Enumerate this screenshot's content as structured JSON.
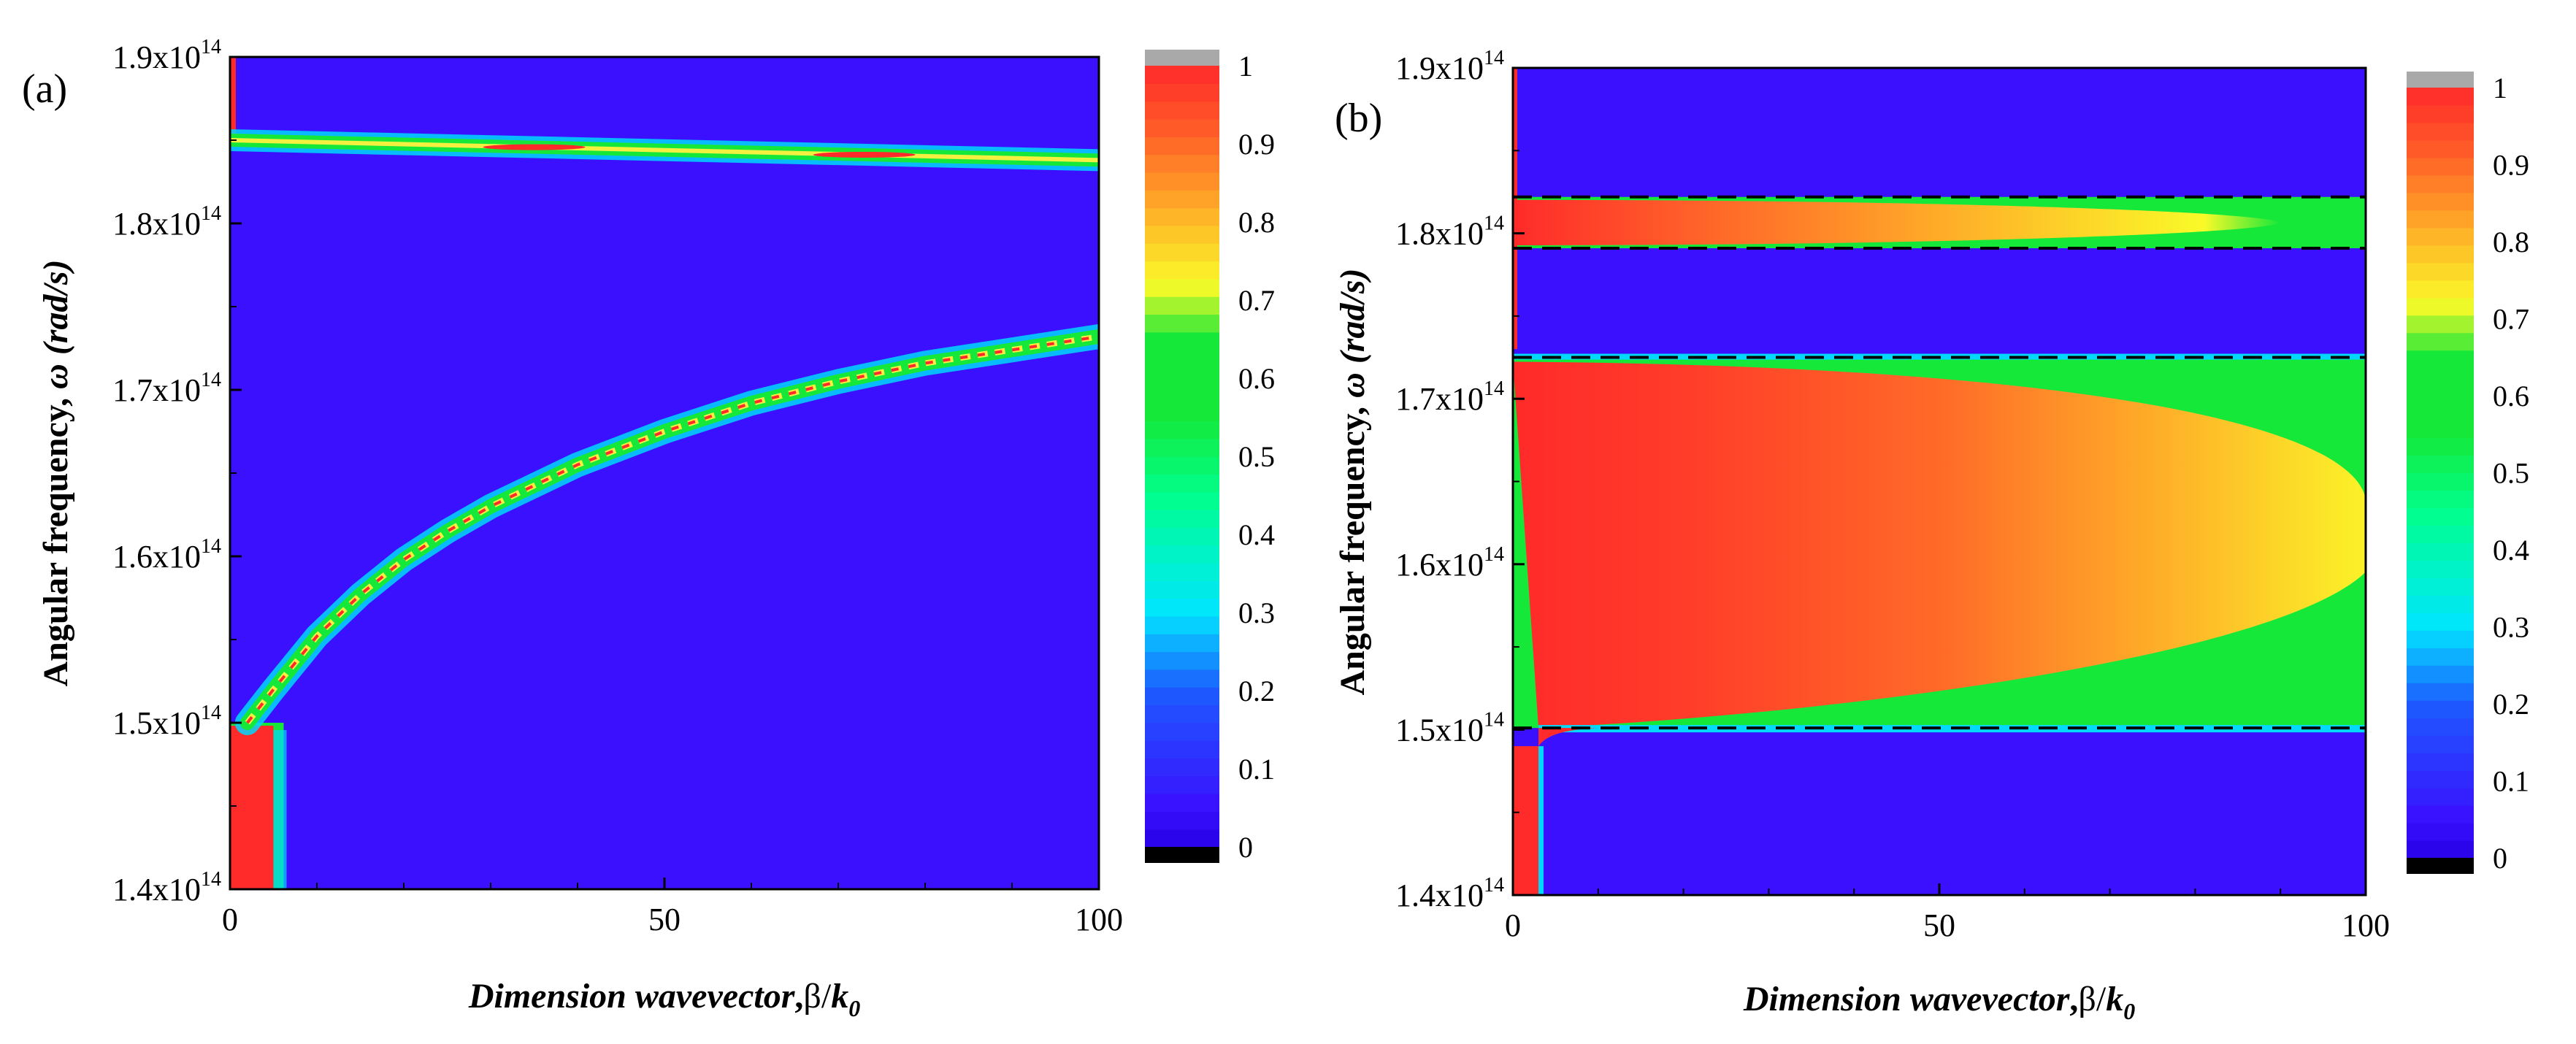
{
  "chart_data": [
    {
      "type": "heatmap",
      "panel_label": "(a)",
      "xlabel_main": "Dimension wavevector",
      "xlabel_sep": ",",
      "xlabel_beta": "β/",
      "xlabel_k": "k",
      "xlabel_sub": "0",
      "ylabel_main": "Angular frequency, ",
      "ylabel_omega": "ω",
      "ylabel_unit": " (rad/s)",
      "xlim": [
        0,
        100
      ],
      "ylim": [
        1.4,
        1.9
      ],
      "x_ticks": [
        {
          "value": 0,
          "label": "0"
        },
        {
          "value": 50,
          "label": "50"
        },
        {
          "value": 100,
          "label": "100"
        }
      ],
      "y_ticks": [
        {
          "value": 1.4,
          "label": "1.4x10",
          "sup": "14"
        },
        {
          "value": 1.5,
          "label": "1.5x10",
          "sup": "14"
        },
        {
          "value": 1.6,
          "label": "1.6x10",
          "sup": "14"
        },
        {
          "value": 1.7,
          "label": "1.7x10",
          "sup": "14"
        },
        {
          "value": 1.8,
          "label": "1.8x10",
          "sup": "14"
        },
        {
          "value": 1.9,
          "label": "1.9x10",
          "sup": "14"
        }
      ],
      "colorbar_ticks": [
        {
          "value": 0,
          "label": "0"
        },
        {
          "value": 0.1,
          "label": "0.1"
        },
        {
          "value": 0.2,
          "label": "0.2"
        },
        {
          "value": 0.3,
          "label": "0.3"
        },
        {
          "value": 0.4,
          "label": "0.4"
        },
        {
          "value": 0.5,
          "label": "0.5"
        },
        {
          "value": 0.6,
          "label": "0.6"
        },
        {
          "value": 0.7,
          "label": "0.7"
        },
        {
          "value": 0.8,
          "label": "0.8"
        },
        {
          "value": 0.9,
          "label": "0.9"
        },
        {
          "value": 1,
          "label": "1"
        }
      ],
      "flat_band": {
        "x": [
          0,
          100
        ],
        "y": [
          1.85,
          1.838
        ]
      },
      "dispersion_curve": {
        "x": [
          2,
          5,
          10,
          15,
          20,
          25,
          30,
          40,
          50,
          60,
          70,
          80,
          90,
          100
        ],
        "y": [
          1.5,
          1.52,
          1.552,
          1.577,
          1.598,
          1.615,
          1.63,
          1.655,
          1.675,
          1.692,
          1.705,
          1.716,
          1.724,
          1.732
        ]
      },
      "low_region": {
        "x": [
          0,
          5
        ],
        "y": [
          1.4,
          1.5
        ],
        "value": 1.0
      },
      "background_value": 0.02
    },
    {
      "type": "heatmap",
      "panel_label": "(b)",
      "xlabel_main": "Dimension wavevector",
      "xlabel_sep": ",",
      "xlabel_beta": "β/",
      "xlabel_k": "k",
      "xlabel_sub": "0",
      "ylabel_main": "Angular frequency, ",
      "ylabel_omega": "ω",
      "ylabel_unit": " (rad/s)",
      "xlim": [
        0,
        100
      ],
      "ylim": [
        1.4,
        1.9
      ],
      "x_ticks": [
        {
          "value": 0,
          "label": "0"
        },
        {
          "value": 50,
          "label": "50"
        },
        {
          "value": 100,
          "label": "100"
        }
      ],
      "y_ticks": [
        {
          "value": 1.4,
          "label": "1.4x10",
          "sup": "14"
        },
        {
          "value": 1.5,
          "label": "1.5x10",
          "sup": "14"
        },
        {
          "value": 1.6,
          "label": "1.6x10",
          "sup": "14"
        },
        {
          "value": 1.7,
          "label": "1.7x10",
          "sup": "14"
        },
        {
          "value": 1.8,
          "label": "1.8x10",
          "sup": "14"
        },
        {
          "value": 1.9,
          "label": "1.9x10",
          "sup": "14"
        }
      ],
      "colorbar_ticks": [
        {
          "value": 0,
          "label": "0"
        },
        {
          "value": 0.1,
          "label": "0.1"
        },
        {
          "value": 0.2,
          "label": "0.2"
        },
        {
          "value": 0.3,
          "label": "0.3"
        },
        {
          "value": 0.4,
          "label": "0.4"
        },
        {
          "value": 0.5,
          "label": "0.5"
        },
        {
          "value": 0.6,
          "label": "0.6"
        },
        {
          "value": 0.7,
          "label": "0.7"
        },
        {
          "value": 0.8,
          "label": "0.8"
        },
        {
          "value": 0.9,
          "label": "0.9"
        },
        {
          "value": 1,
          "label": "1"
        }
      ],
      "dashed_lines_y": [
        1.822,
        1.791,
        1.725,
        1.501
      ],
      "upper_band": {
        "y": [
          1.791,
          1.822
        ],
        "peak": 1.0,
        "edge": 0.62
      },
      "main_band": {
        "y": [
          1.501,
          1.725
        ]
      },
      "low_strip": {
        "x": [
          0,
          3
        ],
        "y": [
          1.4,
          1.49
        ],
        "value": 1.0
      },
      "background_value": 0.02
    }
  ],
  "colors": {
    "background_blue": "#3a10ff",
    "red": "#ff2a2a",
    "green": "#16e83a",
    "colorbar_over": "#a9a9a9",
    "colorbar_under": "#000000"
  }
}
